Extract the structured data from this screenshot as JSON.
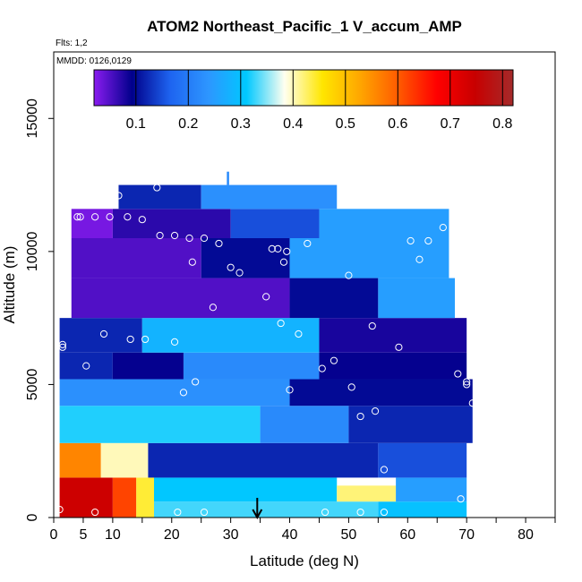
{
  "chart_data": {
    "type": "heatmap",
    "title": "ATOM2 Northeast_Pacific_1 V_accum_AMP",
    "subtitle_flights": "Flts: 1,2",
    "subtitle_dates": "MMDD: 0126,0129",
    "xlabel": "Latitude (deg N)",
    "ylabel": "Altitude (m)",
    "xlim": [
      0,
      85
    ],
    "ylim": [
      0,
      17500
    ],
    "x_ticks": [
      "0",
      "5",
      "10",
      "20",
      "30",
      "40",
      "50",
      "60",
      "70",
      "80"
    ],
    "x_tick_values": [
      0,
      5,
      10,
      20,
      30,
      40,
      50,
      60,
      70,
      80
    ],
    "y_ticks": [
      "0",
      "5000",
      "10000",
      "15000"
    ],
    "y_tick_values": [
      0,
      5000,
      10000,
      15000
    ],
    "colorbar": {
      "range": [
        0.02,
        0.82
      ],
      "ticks": [
        "0.1",
        "0.2",
        "0.3",
        "0.4",
        "0.5",
        "0.6",
        "0.7",
        "0.8"
      ],
      "tick_values": [
        0.1,
        0.2,
        0.3,
        0.4,
        0.5,
        0.6,
        0.7,
        0.8
      ],
      "stops": [
        "#8a1cf0",
        "#00008b",
        "#1e64f0",
        "#2d96ff",
        "#00c8ff",
        "#fffff0",
        "#ffe600",
        "#ffa500",
        "#ff5a00",
        "#ff0000",
        "#c80000",
        "#a52a2a"
      ]
    },
    "arrow_marker_latitude": 34.5,
    "field": [
      {
        "lat0": 1,
        "lat1": 10,
        "alt0": 0,
        "alt1": 1500,
        "value": 0.74
      },
      {
        "lat0": 10,
        "lat1": 14,
        "alt0": 0,
        "alt1": 1500,
        "value": 0.62
      },
      {
        "lat0": 14,
        "lat1": 17,
        "alt0": 0,
        "alt1": 1500,
        "value": 0.44
      },
      {
        "lat0": 17,
        "lat1": 55,
        "alt0": 0,
        "alt1": 600,
        "value": 0.33
      },
      {
        "lat0": 55,
        "lat1": 70,
        "alt0": 0,
        "alt1": 600,
        "value": 0.3
      },
      {
        "lat0": 17,
        "lat1": 48,
        "alt0": 600,
        "alt1": 1500,
        "value": 0.31
      },
      {
        "lat0": 48,
        "lat1": 58,
        "alt0": 600,
        "alt1": 1200,
        "value": 0.42
      },
      {
        "lat0": 58,
        "lat1": 70,
        "alt0": 600,
        "alt1": 1500,
        "value": 0.25
      },
      {
        "lat0": 1,
        "lat1": 8,
        "alt0": 1500,
        "alt1": 2800,
        "value": 0.56
      },
      {
        "lat0": 8,
        "lat1": 16,
        "alt0": 1500,
        "alt1": 2800,
        "value": 0.4
      },
      {
        "lat0": 16,
        "lat1": 55,
        "alt0": 1500,
        "alt1": 2800,
        "value": 0.12
      },
      {
        "lat0": 55,
        "lat1": 70,
        "alt0": 1500,
        "alt1": 2800,
        "value": 0.15
      },
      {
        "lat0": 1,
        "lat1": 35,
        "alt0": 2800,
        "alt1": 4200,
        "value": 0.32
      },
      {
        "lat0": 35,
        "lat1": 50,
        "alt0": 2800,
        "alt1": 4200,
        "value": 0.22
      },
      {
        "lat0": 50,
        "lat1": 71,
        "alt0": 2800,
        "alt1": 4200,
        "value": 0.12
      },
      {
        "lat0": 1,
        "lat1": 40,
        "alt0": 4200,
        "alt1": 5200,
        "value": 0.23
      },
      {
        "lat0": 40,
        "lat1": 71,
        "alt0": 4200,
        "alt1": 5200,
        "value": 0.1
      },
      {
        "lat0": 1,
        "lat1": 10,
        "alt0": 5200,
        "alt1": 6200,
        "value": 0.12
      },
      {
        "lat0": 10,
        "lat1": 22,
        "alt0": 5200,
        "alt1": 6200,
        "value": 0.09
      },
      {
        "lat0": 22,
        "lat1": 45,
        "alt0": 5200,
        "alt1": 6200,
        "value": 0.22
      },
      {
        "lat0": 45,
        "lat1": 70,
        "alt0": 5200,
        "alt1": 6200,
        "value": 0.09
      },
      {
        "lat0": 1,
        "lat1": 15,
        "alt0": 6200,
        "alt1": 7500,
        "value": 0.12
      },
      {
        "lat0": 15,
        "lat1": 45,
        "alt0": 6200,
        "alt1": 7500,
        "value": 0.28
      },
      {
        "lat0": 45,
        "lat1": 70,
        "alt0": 6200,
        "alt1": 7500,
        "value": 0.08
      },
      {
        "lat0": 3,
        "lat1": 40,
        "alt0": 7500,
        "alt1": 9000,
        "value": 0.05
      },
      {
        "lat0": 40,
        "lat1": 55,
        "alt0": 7500,
        "alt1": 9000,
        "value": 0.1
      },
      {
        "lat0": 55,
        "lat1": 68,
        "alt0": 7500,
        "alt1": 9000,
        "value": 0.25
      },
      {
        "lat0": 3,
        "lat1": 25,
        "alt0": 9000,
        "alt1": 10500,
        "value": 0.05
      },
      {
        "lat0": 25,
        "lat1": 40,
        "alt0": 9000,
        "alt1": 10500,
        "value": 0.1
      },
      {
        "lat0": 40,
        "lat1": 67,
        "alt0": 9000,
        "alt1": 10500,
        "value": 0.25
      },
      {
        "lat0": 3,
        "lat1": 10,
        "alt0": 10500,
        "alt1": 11600,
        "value": 0.03
      },
      {
        "lat0": 10,
        "lat1": 30,
        "alt0": 10500,
        "alt1": 11600,
        "value": 0.07
      },
      {
        "lat0": 30,
        "lat1": 45,
        "alt0": 10500,
        "alt1": 11600,
        "value": 0.15
      },
      {
        "lat0": 45,
        "lat1": 67,
        "alt0": 10500,
        "alt1": 11600,
        "value": 0.25
      },
      {
        "lat0": 11,
        "lat1": 25,
        "alt0": 11600,
        "alt1": 12500,
        "value": 0.12
      },
      {
        "lat0": 25,
        "lat1": 48,
        "alt0": 11600,
        "alt1": 12500,
        "value": 0.23
      }
    ],
    "sample_points": [
      {
        "lat": 1,
        "alt": 300
      },
      {
        "lat": 7,
        "alt": 200
      },
      {
        "lat": 21,
        "alt": 200
      },
      {
        "lat": 25.5,
        "alt": 200
      },
      {
        "lat": 46,
        "alt": 200
      },
      {
        "lat": 52,
        "alt": 200
      },
      {
        "lat": 56,
        "alt": 200
      },
      {
        "lat": 69,
        "alt": 700
      },
      {
        "lat": 56,
        "alt": 1800
      },
      {
        "lat": 52,
        "alt": 3800
      },
      {
        "lat": 54.5,
        "alt": 4000
      },
      {
        "lat": 71,
        "alt": 4300
      },
      {
        "lat": 22,
        "alt": 4700
      },
      {
        "lat": 40,
        "alt": 4800
      },
      {
        "lat": 50.5,
        "alt": 4900
      },
      {
        "lat": 24,
        "alt": 5100
      },
      {
        "lat": 70,
        "alt": 5000
      },
      {
        "lat": 68.5,
        "alt": 5400
      },
      {
        "lat": 70,
        "alt": 5100
      },
      {
        "lat": 45.5,
        "alt": 5600
      },
      {
        "lat": 47.5,
        "alt": 5900
      },
      {
        "lat": 5.5,
        "alt": 5700
      },
      {
        "lat": 1.5,
        "alt": 6400
      },
      {
        "lat": 1.5,
        "alt": 6500
      },
      {
        "lat": 8.5,
        "alt": 6900
      },
      {
        "lat": 13,
        "alt": 6700
      },
      {
        "lat": 15.5,
        "alt": 6700
      },
      {
        "lat": 20.5,
        "alt": 6600
      },
      {
        "lat": 41.5,
        "alt": 6900
      },
      {
        "lat": 38.5,
        "alt": 7300
      },
      {
        "lat": 54,
        "alt": 7200
      },
      {
        "lat": 58.5,
        "alt": 6400
      },
      {
        "lat": 27,
        "alt": 7900
      },
      {
        "lat": 36,
        "alt": 8300
      },
      {
        "lat": 31.5,
        "alt": 9200
      },
      {
        "lat": 30,
        "alt": 9400
      },
      {
        "lat": 23.5,
        "alt": 9600
      },
      {
        "lat": 39,
        "alt": 9600
      },
      {
        "lat": 50,
        "alt": 9100
      },
      {
        "lat": 62,
        "alt": 9700
      },
      {
        "lat": 37,
        "alt": 10100
      },
      {
        "lat": 38,
        "alt": 10100
      },
      {
        "lat": 39.5,
        "alt": 10000
      },
      {
        "lat": 43,
        "alt": 10300
      },
      {
        "lat": 28,
        "alt": 10300
      },
      {
        "lat": 18,
        "alt": 10600
      },
      {
        "lat": 20.5,
        "alt": 10600
      },
      {
        "lat": 23,
        "alt": 10500
      },
      {
        "lat": 25.5,
        "alt": 10500
      },
      {
        "lat": 60.5,
        "alt": 10400
      },
      {
        "lat": 63.5,
        "alt": 10400
      },
      {
        "lat": 66,
        "alt": 10900
      },
      {
        "lat": 4,
        "alt": 11300
      },
      {
        "lat": 4.5,
        "alt": 11300
      },
      {
        "lat": 7,
        "alt": 11300
      },
      {
        "lat": 9.5,
        "alt": 11300
      },
      {
        "lat": 12.5,
        "alt": 11300
      },
      {
        "lat": 15,
        "alt": 11200
      },
      {
        "lat": 11,
        "alt": 12100
      },
      {
        "lat": 17.5,
        "alt": 12400
      }
    ]
  }
}
